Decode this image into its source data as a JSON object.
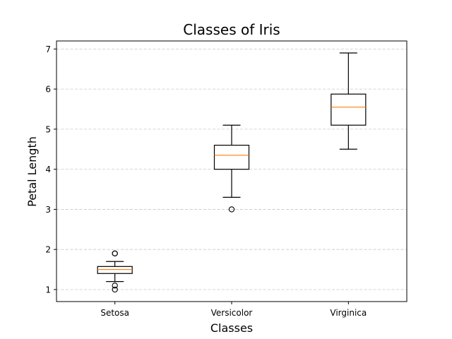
{
  "chart_data": {
    "type": "boxplot",
    "title": "Classes of Iris",
    "xlabel": "Classes",
    "ylabel": "Petal Length",
    "ylim": [
      0.7,
      7.2
    ],
    "yticks": [
      1,
      2,
      3,
      4,
      5,
      6,
      7
    ],
    "grid": "y-dashed",
    "median_color": "#ff7f0e",
    "box_color": "#000000",
    "categories": [
      "Setosa",
      "Versicolor",
      "Virginica"
    ],
    "boxes": [
      {
        "name": "Setosa",
        "whisker_low": 1.2,
        "q1": 1.4,
        "median": 1.5,
        "q3": 1.575,
        "whisker_high": 1.7,
        "fliers": [
          1.0,
          1.1,
          1.9,
          1.9
        ]
      },
      {
        "name": "Versicolor",
        "whisker_low": 3.3,
        "q1": 4.0,
        "median": 4.35,
        "q3": 4.6,
        "whisker_high": 5.1,
        "fliers": [
          3.0
        ]
      },
      {
        "name": "Virginica",
        "whisker_low": 4.5,
        "q1": 5.1,
        "median": 5.55,
        "q3": 5.875,
        "whisker_high": 6.9,
        "fliers": []
      }
    ]
  }
}
